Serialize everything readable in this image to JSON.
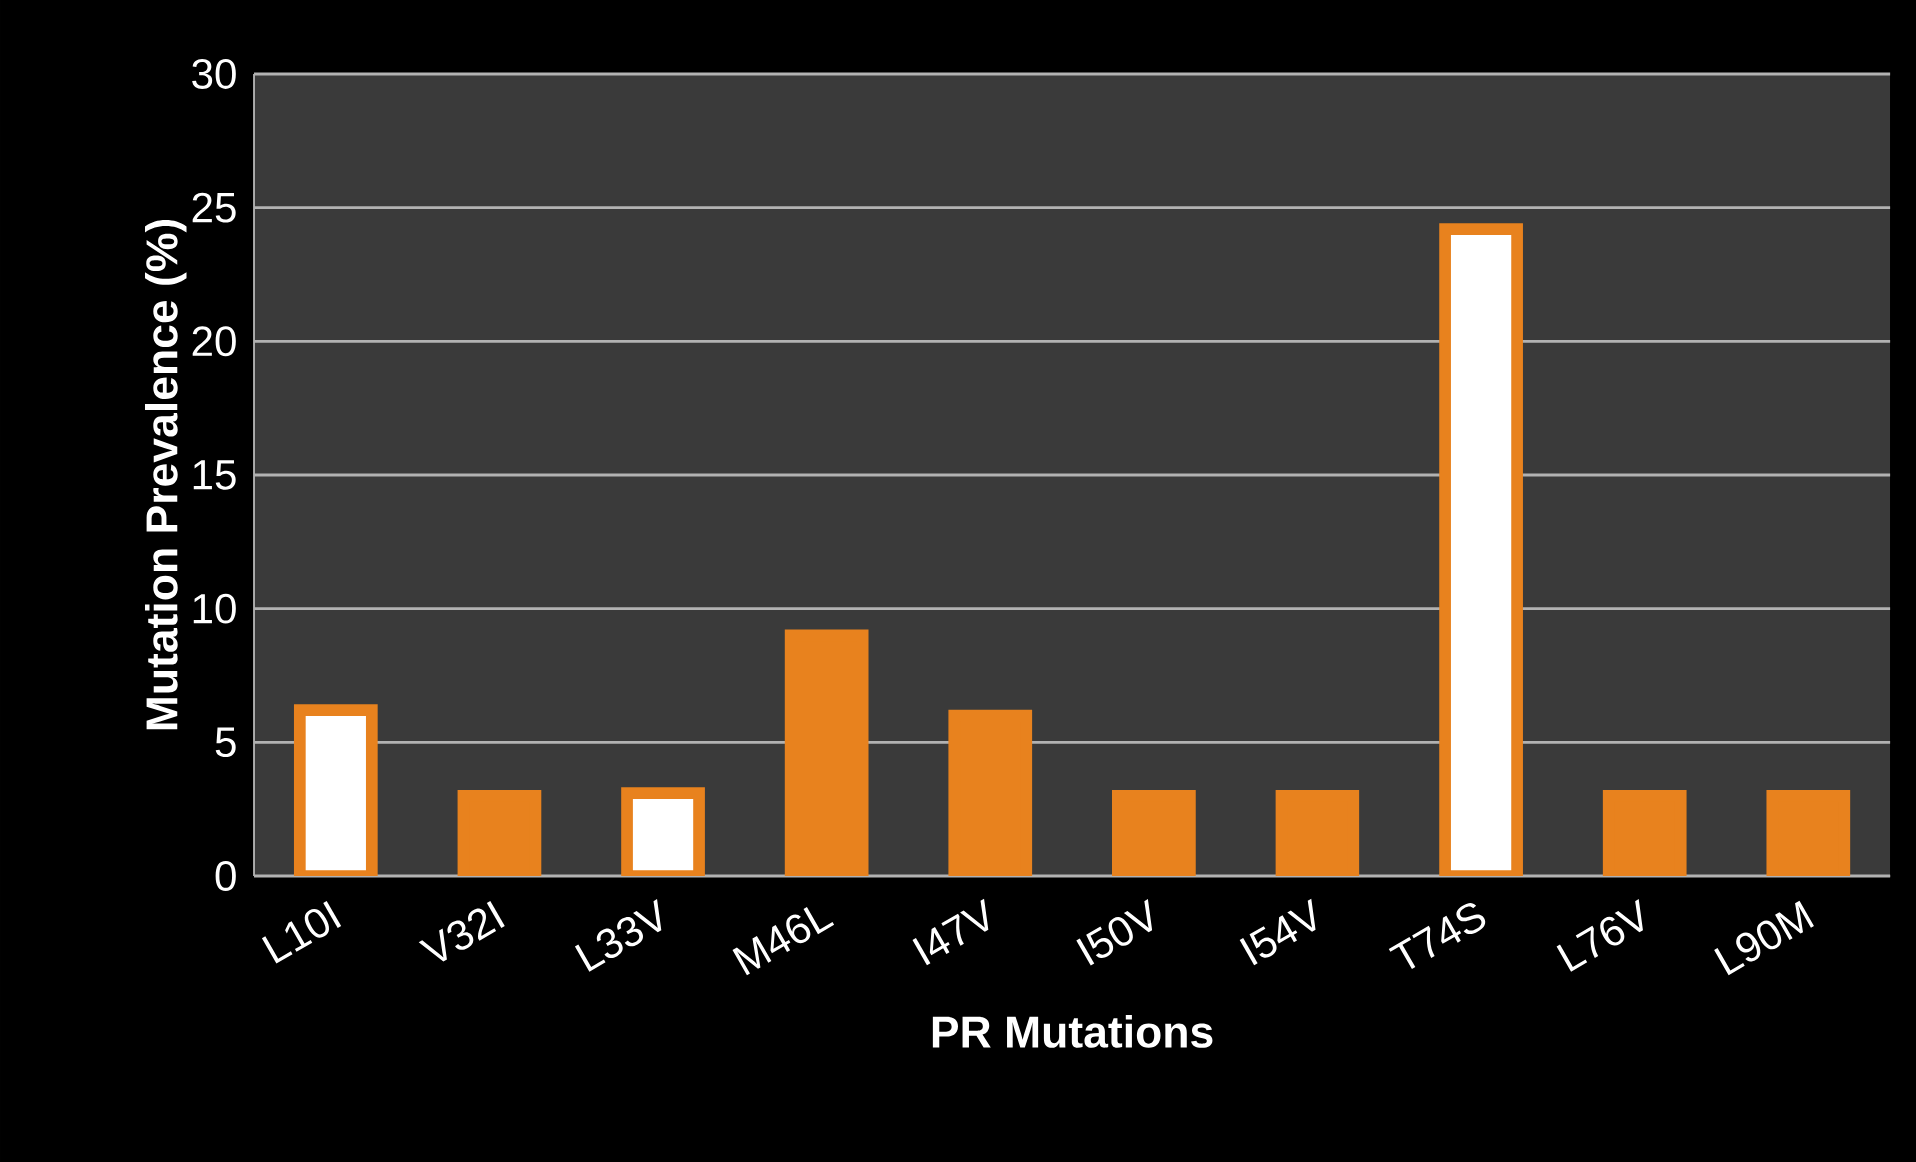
{
  "chart_data": {
    "type": "bar",
    "xlabel": "PR Mutations",
    "ylabel": "Mutation Prevalence (%)",
    "categories": [
      "L10I",
      "V32I",
      "L33V",
      "M46L",
      "I47V",
      "I50V",
      "I54V",
      "T74S",
      "L76V",
      "L90M"
    ],
    "values": [
      6.2,
      3,
      3.1,
      9,
      6,
      3,
      3,
      24.2,
      3,
      3
    ],
    "colors": [
      "#ffffff",
      "#e8821e",
      "#ffffff",
      "#e8821e",
      "#e8821e",
      "#e8821e",
      "#e8821e",
      "#ffffff",
      "#e8821e",
      "#e8821e"
    ],
    "ylim": [
      0,
      30
    ],
    "yticks": [
      0,
      5,
      10,
      15,
      20,
      25,
      30
    ],
    "grid": "y"
  }
}
